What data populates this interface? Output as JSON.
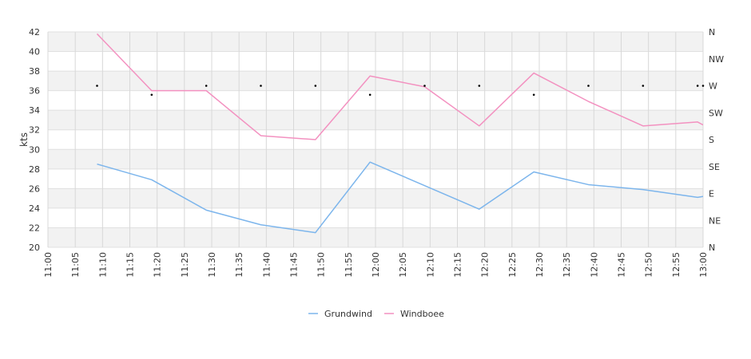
{
  "chart_data": {
    "type": "line",
    "title": "",
    "xlabel": "",
    "ylabel": "kts",
    "ylim": [
      20,
      42
    ],
    "yticks": [
      20,
      22,
      24,
      26,
      28,
      30,
      32,
      34,
      36,
      38,
      40,
      42
    ],
    "xticks": [
      "11:00",
      "11:05",
      "11:10",
      "11:15",
      "11:20",
      "11:25",
      "11:30",
      "11:35",
      "11:40",
      "11:45",
      "11:50",
      "11:55",
      "12:00",
      "12:05",
      "12:10",
      "12:15",
      "12:20",
      "12:25",
      "12:30",
      "12:35",
      "12:40",
      "12:45",
      "12:50",
      "12:55",
      "13:00"
    ],
    "direction_axis": {
      "labels": [
        "N",
        "NW",
        "W",
        "SW",
        "S",
        "SE",
        "E",
        "NE",
        "N"
      ],
      "degrees": [
        360,
        315,
        270,
        225,
        180,
        135,
        90,
        45,
        0
      ]
    },
    "grid": true,
    "legend": "bottom-center",
    "series": [
      {
        "name": "Grundwind",
        "color": "#7cb5ec",
        "x": [
          "11:09",
          "11:19",
          "11:29",
          "11:39",
          "11:49",
          "11:59",
          "12:09",
          "12:19",
          "12:29",
          "12:39",
          "12:49",
          "12:59",
          "13:00"
        ],
        "values": [
          28.5,
          26.9,
          23.8,
          22.3,
          21.5,
          28.7,
          26.3,
          23.9,
          27.7,
          26.4,
          25.9,
          25.1,
          25.2
        ]
      },
      {
        "name": "Windboee",
        "color": "#f391c0",
        "x": [
          "11:09",
          "11:19",
          "11:29",
          "11:39",
          "11:49",
          "11:59",
          "12:09",
          "12:19",
          "12:29",
          "12:39",
          "12:49",
          "12:59",
          "13:00"
        ],
        "values": [
          41.8,
          36.0,
          36.0,
          31.4,
          31.0,
          37.5,
          36.4,
          32.4,
          37.8,
          34.9,
          32.4,
          32.8,
          32.5
        ]
      }
    ],
    "direction_points": {
      "x": [
        "11:09",
        "11:19",
        "11:29",
        "11:39",
        "11:49",
        "11:59",
        "12:09",
        "12:19",
        "12:29",
        "12:39",
        "12:49",
        "12:59",
        "13:00"
      ],
      "values": [
        270,
        255,
        270,
        270,
        270,
        255,
        270,
        270,
        255,
        270,
        270,
        270,
        270
      ]
    }
  }
}
